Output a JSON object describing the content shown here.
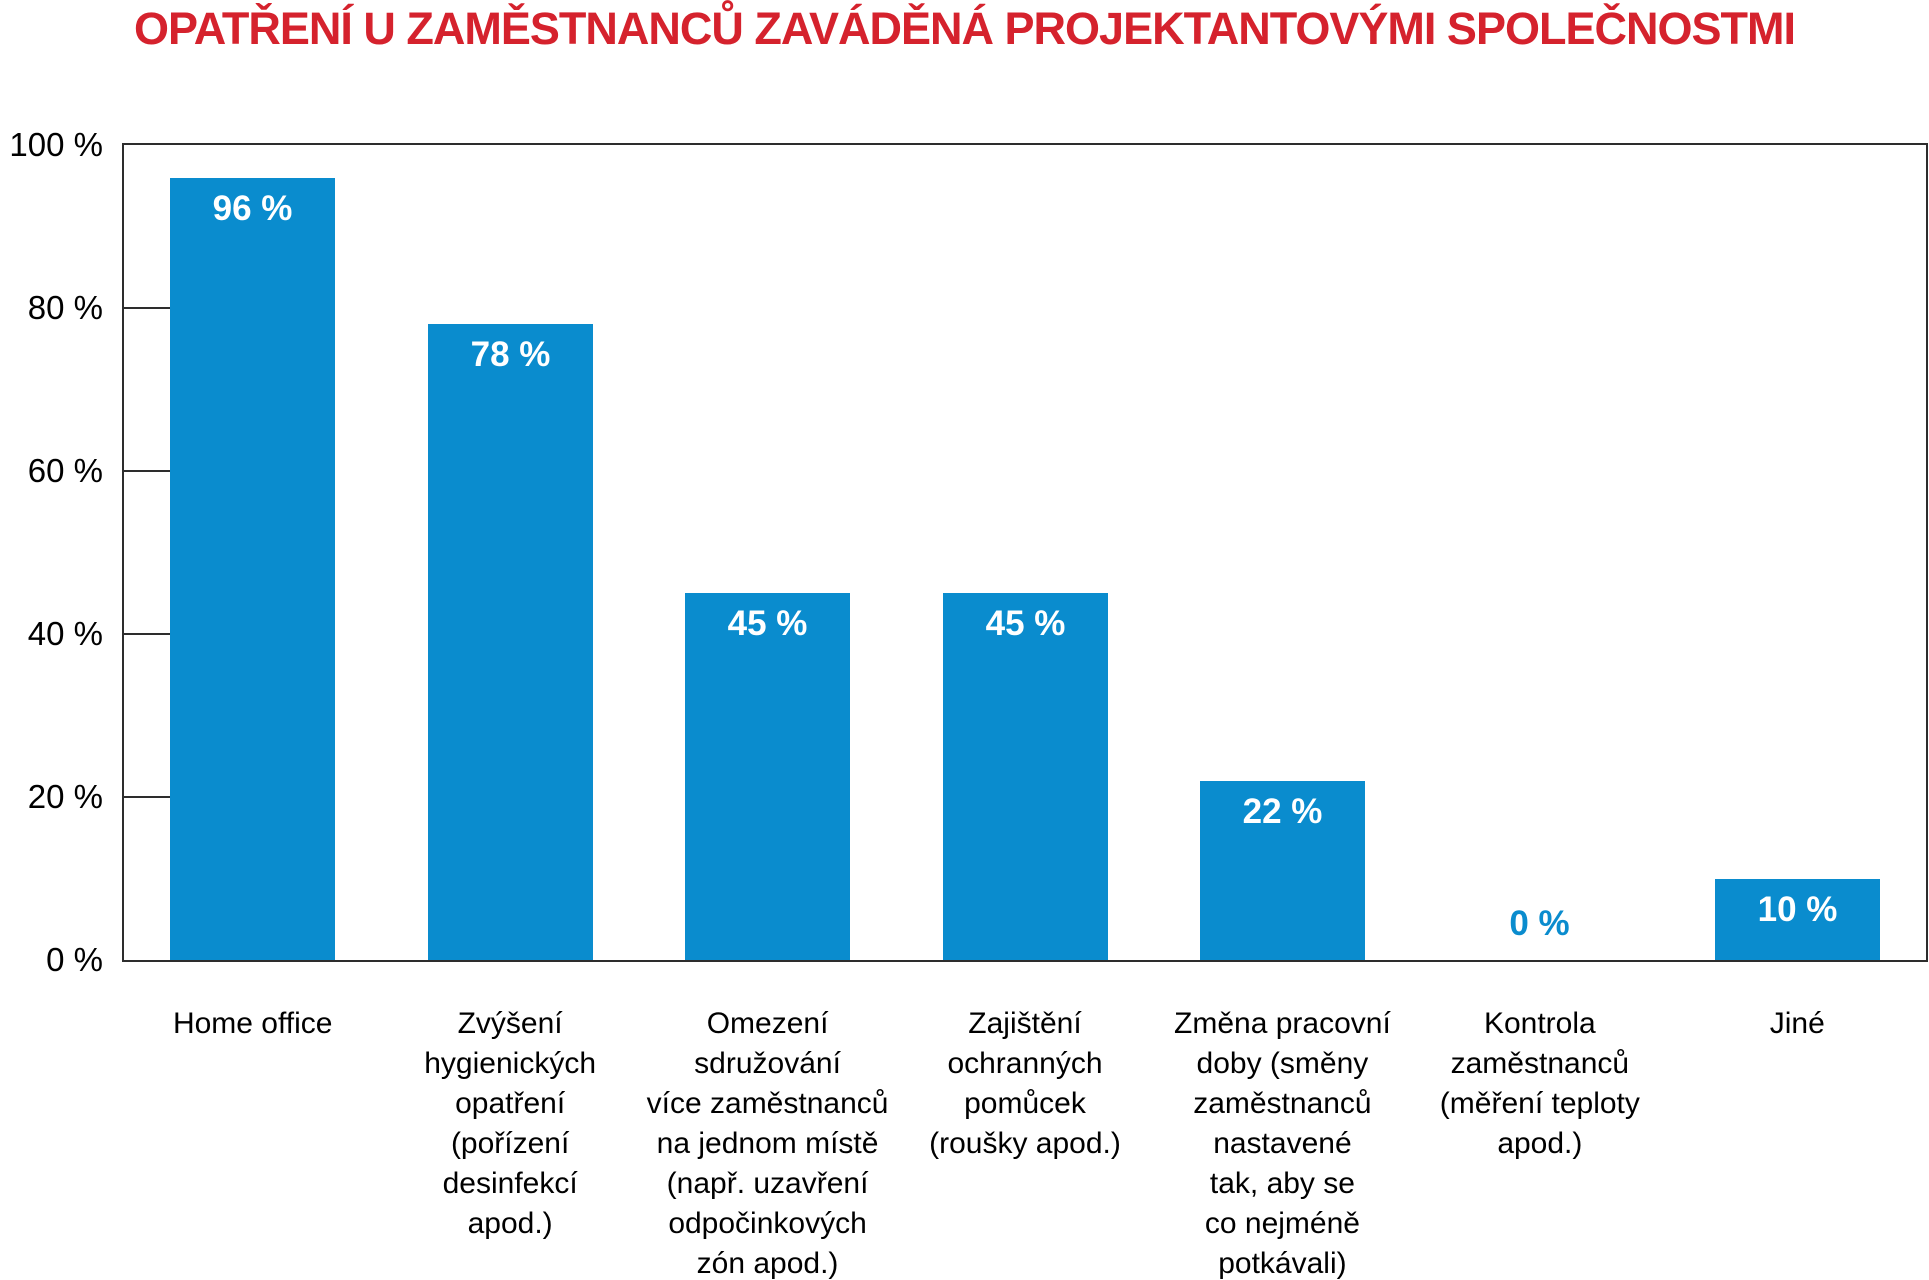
{
  "title": "OPATŘENÍ U ZAMĚSTNANCŮ ZAVÁDĚNÁ PROJEKTANTOVÝMI SPOLEČNOSTMI",
  "chart_data": {
    "type": "bar",
    "title": "OPATŘENÍ U ZAMĚSTNANCŮ ZAVÁDĚNÁ PROJEKTANTOVÝMI SPOLEČNOSTMI",
    "categories": [
      "Home office",
      "Zvýšení hygienických opatření (pořízení desinfekcí apod.)",
      "Omezení sdružování více zaměstnanců na jednom místě (např. uzavření odpočinkových zón apod.)",
      "Zajištění ochranných pomůcek (roušky apod.)",
      "Změna pracovní doby (směny zaměstnanců nastavené tak, aby se co nejméně potkávali)",
      "Kontrola zaměstnanců (měření teploty apod.)",
      "Jiné"
    ],
    "category_lines": [
      [
        "Home office"
      ],
      [
        "Zvýšení",
        "hygienických",
        "opatření",
        "(pořízení",
        "desinfekcí",
        "apod.)"
      ],
      [
        "Omezení",
        "sdružování",
        "více zaměstnanců",
        "na jednom místě",
        "(např. uzavření",
        "odpočinkových",
        "zón apod.)"
      ],
      [
        "Zajištění",
        "ochranných",
        "pomůcek",
        "(roušky apod.)"
      ],
      [
        "Změna pracovní",
        "doby (směny",
        "zaměstnanců",
        "nastavené",
        "tak, aby se",
        "co nejméně",
        "potkávali)"
      ],
      [
        "Kontrola",
        "zaměstnanců",
        "(měření teploty",
        "apod.)"
      ],
      [
        "Jiné"
      ]
    ],
    "values": [
      96,
      78,
      45,
      45,
      22,
      0,
      10
    ],
    "value_labels": [
      "96 %",
      "78 %",
      "45 %",
      "45 %",
      "22 %",
      "0 %",
      "10 %"
    ],
    "ylim": [
      0,
      100
    ],
    "ytick_values": [
      0,
      20,
      40,
      60,
      80,
      100
    ],
    "ytick_labels": [
      "0 %",
      "20 %",
      "40 %",
      "60 %",
      "80 %",
      "100 %"
    ],
    "xlabel": "",
    "ylabel": "",
    "grid": false,
    "legend": null,
    "colors": {
      "bar": "#0a8cce",
      "title": "#d5222d",
      "axis": "#2d2d2d",
      "text": "#000000",
      "value_label_inside": "#ffffff",
      "value_label_zero": "#0a8cce",
      "background": "#ffffff"
    }
  }
}
